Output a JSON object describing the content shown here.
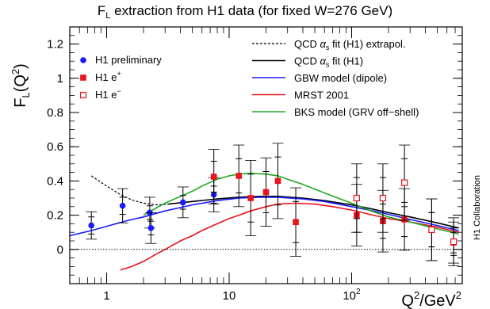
{
  "chart_data": {
    "type": "scatter",
    "title": "F_L extraction from H1 data (for fixed W=276 GeV)",
    "title_parts": {
      "pre": "F",
      "sub": "L",
      "post": " extraction from H1 data (for fixed W=276 GeV)"
    },
    "ylabel": "F_L(Q^2)",
    "ylabel_parts": {
      "base": "F",
      "sub": "L",
      "paren": "(Q",
      "sup": "2",
      "close": ")"
    },
    "xlabel": "Q^2/GeV^2",
    "xlabel_parts": {
      "q": "Q",
      "sup1": "2",
      "mid": "/GeV",
      "sup2": "2"
    },
    "x_scale": "log",
    "xlim": [
      0.5,
      800
    ],
    "ylim": [
      -0.2,
      1.3
    ],
    "x_ticks": [
      {
        "value": 1,
        "label": "1"
      },
      {
        "value": 10,
        "label": "10"
      },
      {
        "value": 100,
        "label": "10",
        "sup": "2"
      }
    ],
    "y_ticks": [
      {
        "value": 0,
        "label": "0"
      },
      {
        "value": 0.2,
        "label": "0.2"
      },
      {
        "value": 0.4,
        "label": "0.4"
      },
      {
        "value": 0.6,
        "label": "0.6"
      },
      {
        "value": 0.8,
        "label": "0.8"
      },
      {
        "value": 1,
        "label": "1"
      },
      {
        "value": 1.2,
        "label": "1.2"
      }
    ],
    "reference_line_y": 0,
    "side_label": "H1 Collaboration",
    "legend_left": [
      {
        "name": "H1 preliminary",
        "marker": "circle",
        "color": "#1a1aff"
      },
      {
        "name": "H1 e+",
        "text": "H1 e",
        "sup": "+",
        "marker": "square",
        "color": "#e8141b"
      },
      {
        "name": "H1 e-",
        "text": "H1 e",
        "sup": "−",
        "marker": "open-square",
        "color": "#e8141b"
      }
    ],
    "legend_right": [
      {
        "pre": "QCD ",
        "greek": "α",
        "sub": "s",
        "post": " fit (H1) extrapol.",
        "style": "dashed",
        "color": "#000000"
      },
      {
        "pre": "QCD ",
        "greek": "α",
        "sub": "s",
        "post": " fit (H1)",
        "style": "solid",
        "color": "#000000"
      },
      {
        "pre": "GBW model (dipole)",
        "style": "solid",
        "color": "#1a1aff"
      },
      {
        "pre": "MRST 2001",
        "style": "solid",
        "color": "#e8141b"
      },
      {
        "pre": "BKS model (GRV off−shell)",
        "style": "solid",
        "color": "#22aa22"
      }
    ],
    "curves": [
      {
        "name": "QCD as fit (H1) extrapol.",
        "style": "dashed",
        "color": "#000000",
        "x": [
          0.75,
          1.0,
          1.3,
          1.6,
          2.0,
          2.6,
          3.2
        ],
        "y": [
          0.43,
          0.37,
          0.32,
          0.29,
          0.27,
          0.26,
          0.265
        ]
      },
      {
        "name": "QCD as fit (H1)",
        "style": "solid",
        "color": "#000000",
        "x": [
          3.2,
          5,
          8,
          12,
          18,
          25,
          40,
          60,
          100,
          150,
          200,
          300,
          500,
          750
        ],
        "y": [
          0.265,
          0.28,
          0.295,
          0.305,
          0.31,
          0.31,
          0.3,
          0.285,
          0.26,
          0.235,
          0.215,
          0.19,
          0.155,
          0.125
        ]
      },
      {
        "name": "GBW model (dipole)",
        "style": "solid",
        "color": "#1a1aff",
        "x": [
          0.5,
          0.75,
          1,
          1.5,
          2,
          3,
          5,
          8,
          12,
          18,
          25,
          40,
          60,
          100,
          150,
          200,
          300,
          500,
          750
        ],
        "y": [
          0.08,
          0.11,
          0.135,
          0.17,
          0.19,
          0.225,
          0.26,
          0.285,
          0.3,
          0.305,
          0.305,
          0.295,
          0.28,
          0.25,
          0.225,
          0.205,
          0.175,
          0.14,
          0.11
        ]
      },
      {
        "name": "MRST 2001",
        "style": "solid",
        "color": "#e8141b",
        "x": [
          1.3,
          1.6,
          2,
          2.5,
          3,
          4,
          5,
          6,
          8,
          10,
          12,
          15,
          20,
          25,
          35,
          50,
          70,
          100,
          150,
          200,
          300,
          500,
          750
        ],
        "y": [
          -0.12,
          -0.1,
          -0.07,
          -0.03,
          0.0,
          0.05,
          0.08,
          0.11,
          0.15,
          0.18,
          0.2,
          0.225,
          0.25,
          0.265,
          0.27,
          0.265,
          0.25,
          0.23,
          0.2,
          0.18,
          0.16,
          0.13,
          0.1
        ]
      },
      {
        "name": "BKS model (GRV off-shell)",
        "style": "solid",
        "color": "#22aa22",
        "x": [
          2,
          2.5,
          3,
          4,
          5,
          6,
          8,
          10,
          12,
          15,
          20,
          25,
          30,
          40,
          60,
          100,
          150,
          200,
          300,
          500,
          750
        ],
        "y": [
          0.2,
          0.24,
          0.27,
          0.31,
          0.34,
          0.37,
          0.41,
          0.43,
          0.44,
          0.445,
          0.44,
          0.43,
          0.41,
          0.38,
          0.33,
          0.27,
          0.22,
          0.19,
          0.16,
          0.12,
          0.09
        ]
      }
    ],
    "series": [
      {
        "name": "H1 preliminary",
        "marker": "circle",
        "color": "#1a1aff",
        "points": [
          {
            "x": 0.75,
            "y": 0.14,
            "err_stat": 0.05,
            "err_tot": 0.08
          },
          {
            "x": 1.35,
            "y": 0.255,
            "err_stat": 0.05,
            "err_tot": 0.1
          },
          {
            "x": 2.25,
            "y": 0.215,
            "err_stat": 0.04,
            "err_tot": 0.09
          },
          {
            "x": 2.3,
            "y": 0.125,
            "err_stat": 0.04,
            "err_tot": 0.09
          },
          {
            "x": 4.2,
            "y": 0.275,
            "err_stat": 0.04,
            "err_tot": 0.09
          },
          {
            "x": 7.5,
            "y": 0.32,
            "err_stat": 0.05,
            "err_tot": 0.1
          }
        ]
      },
      {
        "name": "H1 e+",
        "marker": "square",
        "color": "#e8141b",
        "points": [
          {
            "x": 7.5,
            "y": 0.425,
            "err_stat": 0.09,
            "err_tot": 0.16
          },
          {
            "x": 12,
            "y": 0.43,
            "err_stat": 0.1,
            "err_tot": 0.18
          },
          {
            "x": 15,
            "y": 0.3,
            "err_stat": 0.14,
            "err_tot": 0.22
          },
          {
            "x": 20,
            "y": 0.335,
            "err_stat": 0.12,
            "err_tot": 0.2
          },
          {
            "x": 25,
            "y": 0.4,
            "err_stat": 0.14,
            "err_tot": 0.22
          },
          {
            "x": 35,
            "y": 0.16,
            "err_stat": 0.12,
            "err_tot": 0.2
          },
          {
            "x": 110,
            "y": 0.2,
            "err_stat": 0.1,
            "err_tot": 0.18
          },
          {
            "x": 180,
            "y": 0.165,
            "err_stat": 0.1,
            "err_tot": 0.18
          },
          {
            "x": 270,
            "y": 0.175,
            "err_stat": 0.1,
            "err_tot": 0.18
          },
          {
            "x": 450,
            "y": 0.115,
            "err_stat": 0.1,
            "err_tot": 0.18
          },
          {
            "x": 680,
            "y": 0.04,
            "err_stat": 0.06,
            "err_tot": 0.12
          }
        ]
      },
      {
        "name": "H1 e-",
        "marker": "open-square",
        "color": "#e8141b",
        "points": [
          {
            "x": 110,
            "y": 0.3,
            "err_stat": 0.12,
            "err_tot": 0.2
          },
          {
            "x": 180,
            "y": 0.3,
            "err_stat": 0.12,
            "err_tot": 0.2
          },
          {
            "x": 270,
            "y": 0.39,
            "err_stat": 0.14,
            "err_tot": 0.22
          },
          {
            "x": 450,
            "y": 0.115,
            "err_stat": 0.1,
            "err_tot": 0.18
          },
          {
            "x": 680,
            "y": 0.045,
            "err_stat": 0.08,
            "err_tot": 0.14
          }
        ]
      }
    ]
  }
}
